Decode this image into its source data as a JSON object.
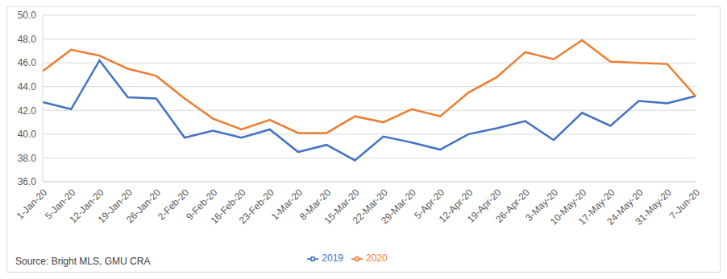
{
  "chart_data": {
    "type": "line",
    "source": "Source: Bright MLS, GMU CRA",
    "categories": [
      "1-Jan-20",
      "5-Jan-20",
      "12-Jan-20",
      "19-Jan-20",
      "26-Jan-20",
      "2-Feb-20",
      "9-Feb-20",
      "16-Feb-20",
      "23-Feb-20",
      "1-Mar-20",
      "8-Mar-20",
      "15-Mar-20",
      "22-Mar-20",
      "29-Mar-20",
      "5-Apr-20",
      "12-Apr-20",
      "19-Apr-20",
      "26-Apr-20",
      "3-May-20",
      "10-May-20",
      "17-May-20",
      "24-May-20",
      "31-May-20",
      "7-Jun-20"
    ],
    "series": [
      {
        "name": "2019",
        "color": "#4472c4",
        "values": [
          42.7,
          42.1,
          46.2,
          43.1,
          43.0,
          39.7,
          40.3,
          39.7,
          40.4,
          38.5,
          39.1,
          37.8,
          39.8,
          39.3,
          38.7,
          40.0,
          40.5,
          41.1,
          39.5,
          41.8,
          40.7,
          42.8,
          42.6,
          43.2
        ]
      },
      {
        "name": "2020",
        "color": "#ed7d31",
        "values": [
          45.3,
          47.1,
          46.6,
          45.5,
          44.9,
          43.0,
          41.3,
          40.4,
          41.2,
          40.1,
          40.1,
          41.5,
          41.0,
          42.1,
          41.5,
          43.5,
          44.8,
          46.9,
          46.3,
          47.9,
          46.1,
          46.0,
          45.9,
          43.2
        ]
      }
    ],
    "ylim": [
      36,
      50
    ],
    "yticks": [
      {
        "value": 36,
        "label": "36.0"
      },
      {
        "value": 38,
        "label": "38.0"
      },
      {
        "value": 40,
        "label": "40.0"
      },
      {
        "value": 42,
        "label": "42.0"
      },
      {
        "value": 44,
        "label": "44.0"
      },
      {
        "value": 46,
        "label": "46.0"
      },
      {
        "value": 48,
        "label": "48.0"
      },
      {
        "value": 50,
        "label": "50.0"
      }
    ],
    "grid": true,
    "legend": "bottom"
  }
}
